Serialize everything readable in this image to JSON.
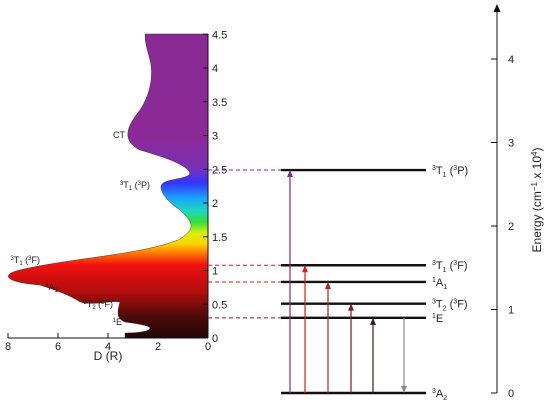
{
  "spectrum_panel": {
    "x_axis_label": "D (R)",
    "x_ticks": [
      "8",
      "6",
      "4",
      "2",
      "0"
    ],
    "y_ticks": [
      "0",
      "0.5",
      "1",
      "1.5",
      "2",
      "2.5",
      "3",
      "3.5",
      "4",
      "4.5"
    ],
    "band_labels": [
      {
        "id": "ct",
        "text": "CT"
      },
      {
        "id": "t1p",
        "base": "3",
        "sym": "T",
        "sub": "1",
        "paren_sup": "3",
        "paren_sym": "P"
      },
      {
        "id": "t1f",
        "base": "3",
        "sym": "T",
        "sub": "1",
        "paren_sup": "3",
        "paren_sym": "F"
      },
      {
        "id": "a1",
        "base": "1",
        "sym": "A",
        "sub": "1"
      },
      {
        "id": "t2f",
        "base": "3",
        "sym": "T",
        "sub": "2",
        "paren_sup": "3",
        "paren_sym": "F"
      },
      {
        "id": "e",
        "base": "1",
        "sym": "E"
      }
    ]
  },
  "energy_axis": {
    "title": "Energy (cm",
    "title_exp": "−1",
    "title_mid": " x 10",
    "title_exp2": "4",
    "title_end": ")",
    "ticks": [
      "0",
      "1",
      "2",
      "3",
      "4"
    ]
  },
  "energy_levels": [
    {
      "id": "a2",
      "base": "3",
      "sym": "A",
      "sub": "2",
      "energy": 0
    },
    {
      "id": "e",
      "base": "1",
      "sym": "E",
      "energy": 0.9
    },
    {
      "id": "t2f",
      "base": "3",
      "sym": "T",
      "sub": "2",
      "paren_sup": "3",
      "paren_sym": "F",
      "energy": 1.07
    },
    {
      "id": "a1",
      "base": "1",
      "sym": "A",
      "sub": "1",
      "energy": 1.33
    },
    {
      "id": "t1f",
      "base": "3",
      "sym": "T",
      "sub": "1",
      "paren_sup": "3",
      "paren_sym": "F",
      "energy": 1.53
    },
    {
      "id": "t1p",
      "base": "3",
      "sym": "T",
      "sub": "1",
      "paren_sup": "3",
      "paren_sym": "P",
      "energy": 2.67
    }
  ],
  "transitions": [
    {
      "to": "t1p",
      "color": "#7b2a8f",
      "direction": "up"
    },
    {
      "to": "t1f",
      "color": "#e01818",
      "direction": "up"
    },
    {
      "to": "a1",
      "color": "#b32020",
      "direction": "up"
    },
    {
      "to": "t2f",
      "color": "#7a1a1a",
      "direction": "up"
    },
    {
      "to": "e",
      "color": "#3c1a1a",
      "direction": "up"
    },
    {
      "to": "e",
      "color": "#888888",
      "direction": "down"
    }
  ],
  "connector_colors": {
    "t1p": "#7b2a8f",
    "t1f": "#e01818",
    "a1": "#c21c1c",
    "e": "#8b1a1a"
  }
}
